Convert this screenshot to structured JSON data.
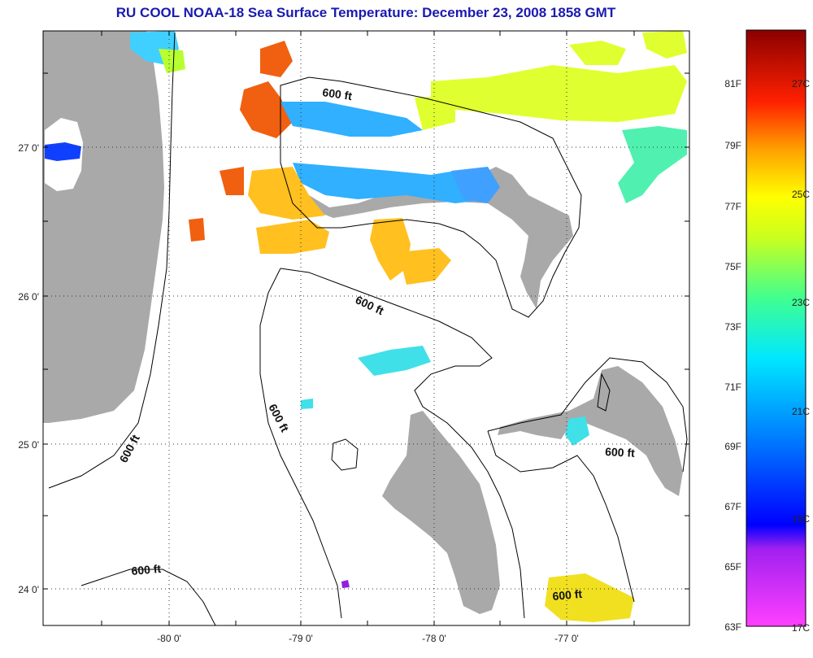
{
  "title": "RU COOL  NOAA-18  Sea Surface Temperature:  December 23, 2008 1858 GMT",
  "map": {
    "lon_range": [
      -80.97,
      -76.0
    ],
    "lat_range": [
      23.73,
      27.82
    ],
    "lon_ticks": [
      {
        "value": -80,
        "label": "-80 0'"
      },
      {
        "value": -79,
        "label": "-79 0'"
      },
      {
        "value": -78,
        "label": "-78 0'"
      },
      {
        "value": -77,
        "label": "-77 0'"
      }
    ],
    "lat_ticks": [
      {
        "value": 27,
        "label": "27 0'"
      },
      {
        "value": 26,
        "label": "26 0'"
      },
      {
        "value": 25,
        "label": "25 0'"
      },
      {
        "value": 24,
        "label": "24 0'"
      }
    ],
    "contour_labels": [
      "600 ft",
      "600 ft",
      "600 ft",
      "600 ft",
      "600 ft",
      "600 ft",
      "600 ft"
    ],
    "land_color": "#a9a9a9"
  },
  "colorbar": {
    "fahrenheit": [
      "81F",
      "79F",
      "77F",
      "75F",
      "73F",
      "71F",
      "69F",
      "67F",
      "65F",
      "63F"
    ],
    "celsius": [
      "27C",
      "25C",
      "23C",
      "21C",
      "19C",
      "17C"
    ]
  }
}
